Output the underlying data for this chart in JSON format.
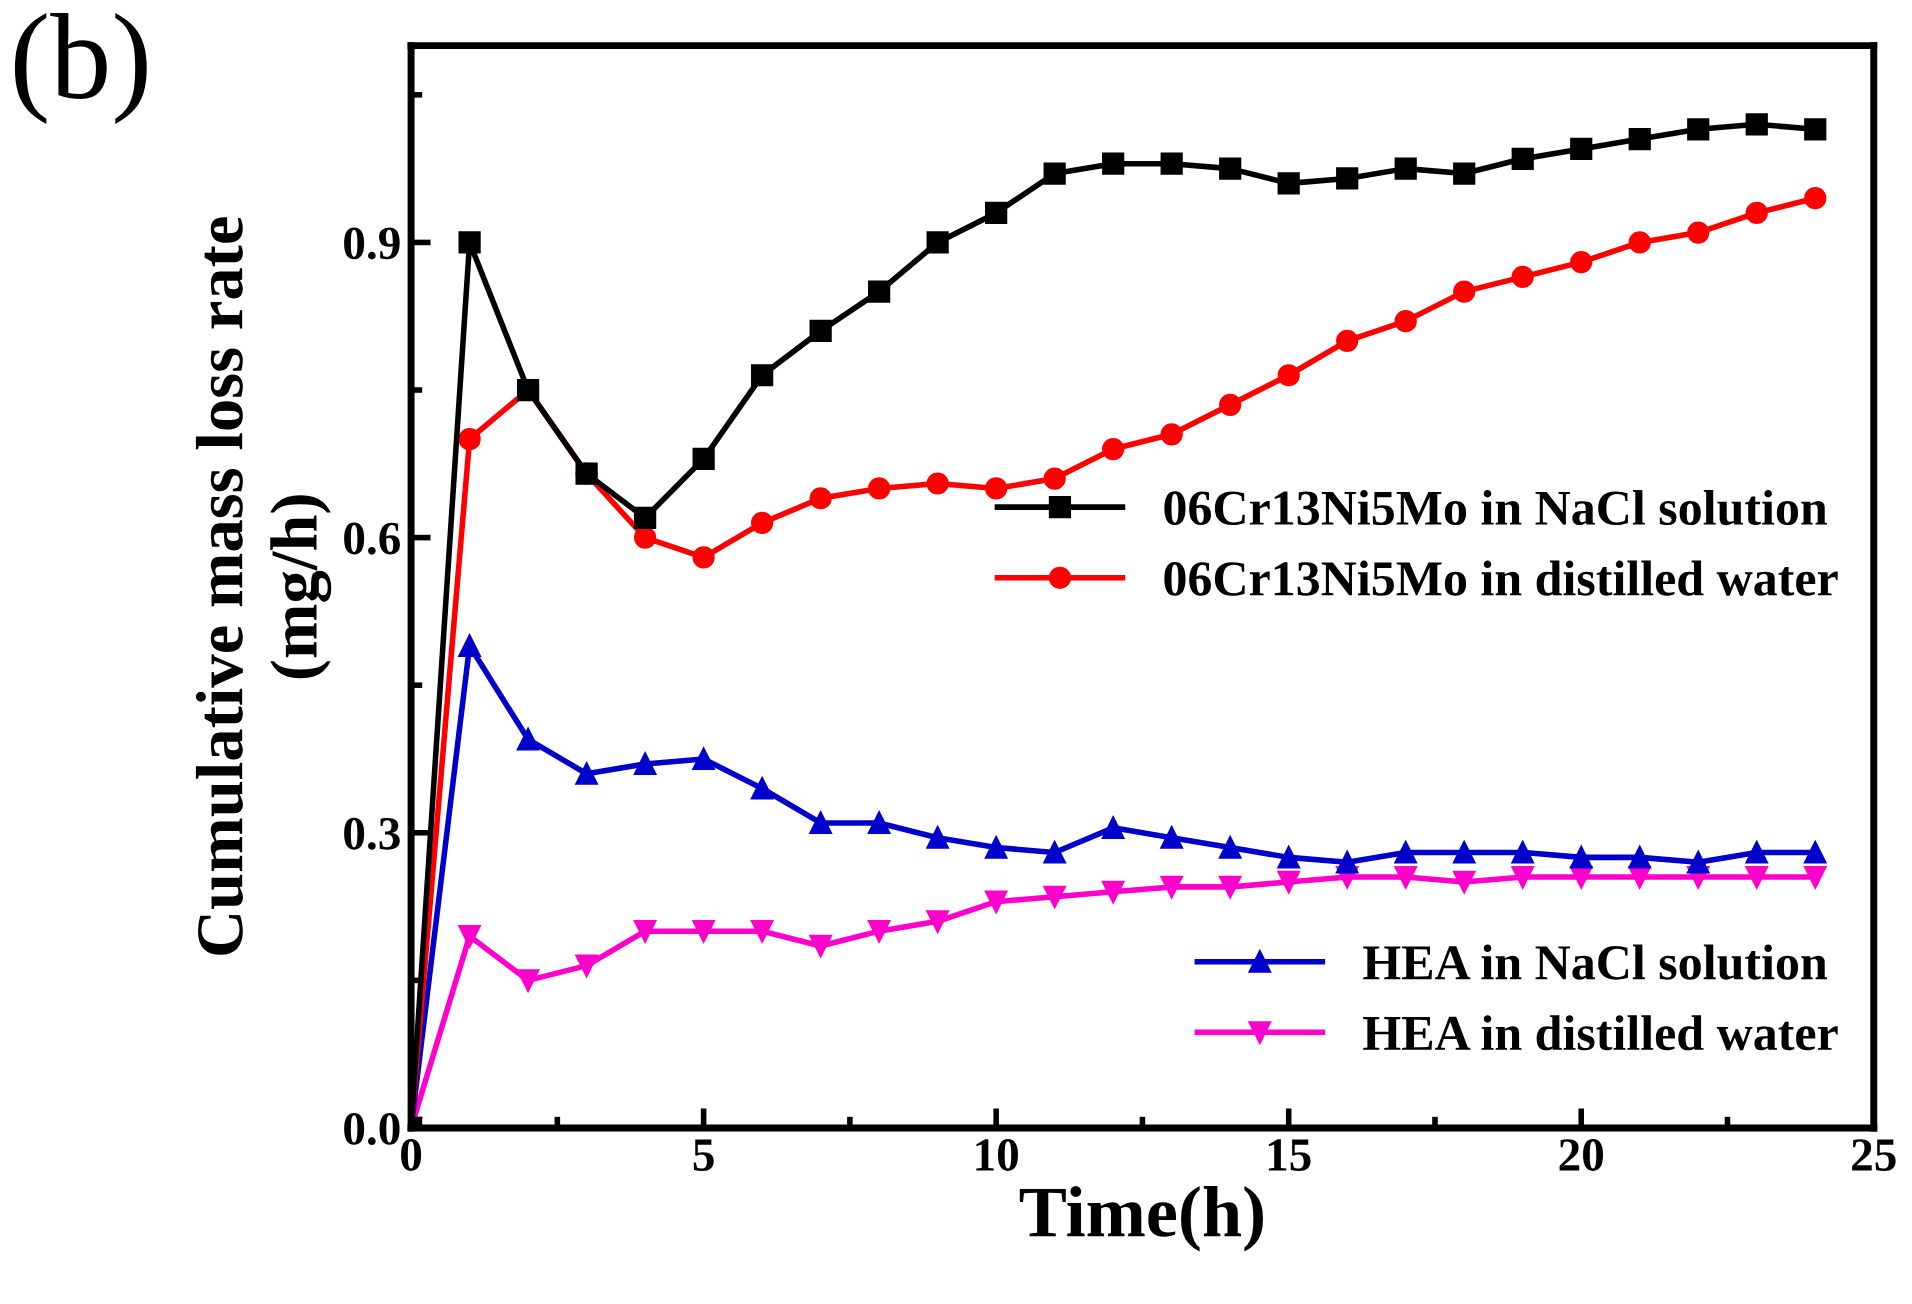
{
  "chart_data": {
    "type": "line",
    "xlabel": "Time(h)",
    "ylabel": "Cumulative mass loss rate\n(mg/h)",
    "annotations": [
      "(b)"
    ],
    "x": [
      0,
      1,
      2,
      3,
      4,
      5,
      6,
      7,
      8,
      9,
      10,
      11,
      12,
      13,
      14,
      15,
      16,
      17,
      18,
      19,
      20,
      21,
      22,
      23,
      24
    ],
    "series": [
      {
        "name": "06Cr13Ni5Mo in NaCl solution",
        "color": "#000000",
        "marker": "square",
        "values": [
          0,
          0.9,
          0.75,
          0.665,
          0.62,
          0.68,
          0.765,
          0.81,
          0.85,
          0.9,
          0.93,
          0.97,
          0.98,
          0.98,
          0.975,
          0.96,
          0.965,
          0.975,
          0.97,
          0.985,
          0.995,
          1.005,
          1.015,
          1.02,
          1.015
        ]
      },
      {
        "name": "06Cr13Ni5Mo in distilled water",
        "color": "#ff0000",
        "marker": "circle",
        "values": [
          0,
          0.7,
          0.75,
          0.665,
          0.6,
          0.58,
          0.615,
          0.64,
          0.65,
          0.655,
          0.65,
          0.66,
          0.69,
          0.705,
          0.735,
          0.765,
          0.8,
          0.82,
          0.85,
          0.865,
          0.88,
          0.9,
          0.91,
          0.93,
          0.945
        ]
      },
      {
        "name": "HEA in NaCl solution",
        "color": "#0000cc",
        "marker": "triangle",
        "values": [
          0,
          0.49,
          0.395,
          0.36,
          0.37,
          0.375,
          0.345,
          0.31,
          0.31,
          0.295,
          0.285,
          0.28,
          0.305,
          0.295,
          0.285,
          0.275,
          0.27,
          0.28,
          0.28,
          0.28,
          0.275,
          0.275,
          0.27,
          0.28,
          0.28
        ]
      },
      {
        "name": "HEA in distilled water",
        "color": "#ff00cc",
        "marker": "triangle_down",
        "values": [
          0,
          0.195,
          0.15,
          0.165,
          0.2,
          0.2,
          0.2,
          0.185,
          0.2,
          0.21,
          0.23,
          0.235,
          0.24,
          0.245,
          0.245,
          0.25,
          0.255,
          0.255,
          0.25,
          0.255,
          0.255,
          0.255,
          0.255,
          0.255,
          0.255
        ]
      }
    ],
    "xlim": [
      0,
      25
    ],
    "xticks": [
      0,
      5,
      10,
      15,
      20,
      25
    ],
    "ylim": [
      0,
      1.1
    ],
    "yticks": [
      {
        "value": 0,
        "label": "0.0"
      },
      0.3,
      0.6,
      0.9
    ],
    "grid": false,
    "legend": "right",
    "line_style": "solid"
  }
}
